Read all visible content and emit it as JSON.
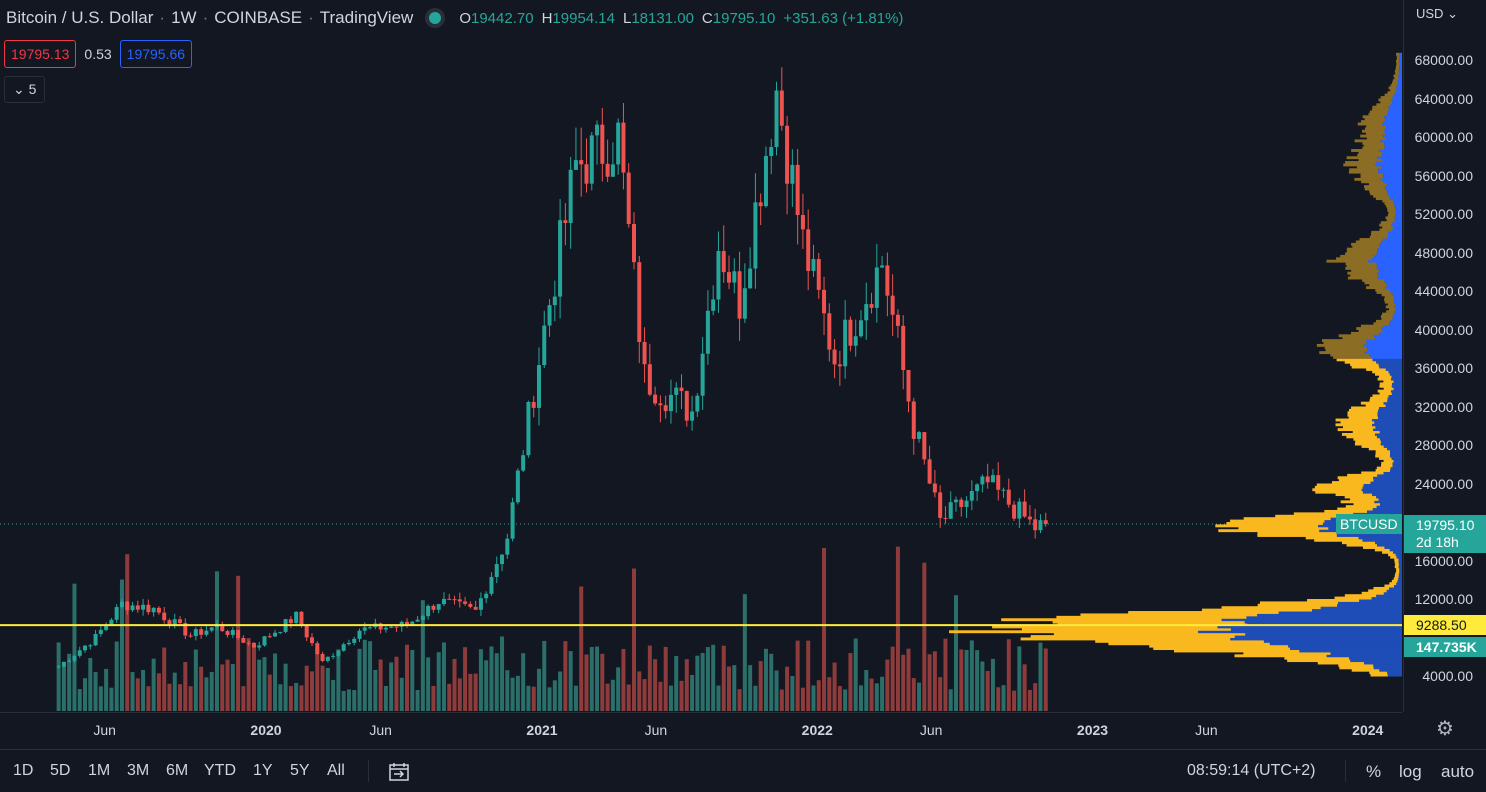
{
  "header": {
    "symbol_title": "Bitcoin / U.S. Dollar",
    "interval": "1W",
    "exchange": "COINBASE",
    "source": "TradingView",
    "open_label": "O",
    "open": "19442.70",
    "high_label": "H",
    "high": "19954.14",
    "low_label": "L",
    "low": "18131.00",
    "close_label": "C",
    "close": "19795.10",
    "change": "+351.63 (+1.81%)"
  },
  "quote": {
    "sell": "19795.13",
    "spread": "0.53",
    "buy": "19795.66"
  },
  "indicators_collapse": {
    "arrow": "⌄",
    "count": "5"
  },
  "price_axis": {
    "currency": "USD",
    "currency_arrow": "⌄",
    "labels": [
      "68000.00",
      "64000.00",
      "60000.00",
      "56000.00",
      "52000.00",
      "48000.00",
      "44000.00",
      "40000.00",
      "36000.00",
      "32000.00",
      "28000.00",
      "24000.00",
      "16000.00",
      "12000.00",
      "4000.00"
    ],
    "last_price_tag": "19795.10",
    "countdown": "2d 18h",
    "ref_line_tag": "9288.50",
    "volume_tag": "147.735K",
    "symbol_tag": "BTCUSD"
  },
  "time_axis": {
    "labels": [
      {
        "text": "Jun",
        "bold": false
      },
      {
        "text": "2020",
        "bold": true
      },
      {
        "text": "Jun",
        "bold": false
      },
      {
        "text": "2021",
        "bold": true
      },
      {
        "text": "Jun",
        "bold": false
      },
      {
        "text": "2022",
        "bold": true
      },
      {
        "text": "Jun",
        "bold": false
      },
      {
        "text": "2023",
        "bold": true
      },
      {
        "text": "Jun",
        "bold": false
      },
      {
        "text": "2024",
        "bold": true
      }
    ]
  },
  "bottom_bar": {
    "ranges": [
      "1D",
      "5D",
      "1M",
      "3M",
      "6M",
      "YTD",
      "1Y",
      "5Y",
      "All"
    ],
    "clock": "08:59:14 (UTC+2)",
    "options": [
      "%",
      "log",
      "auto"
    ]
  },
  "colors": {
    "up": "#26a69a",
    "down": "#ef5350",
    "background": "#131722",
    "ref_line": "#ffeb3b",
    "vp_up": "#f9b91e",
    "vp_down": "#1e4db7"
  },
  "chart_data": {
    "type": "candlestick",
    "symbol": "BTCUSD",
    "interval": "1W",
    "ylim": [
      2000,
      70000
    ],
    "last_price": 19795.1,
    "ref_line": 9288.5,
    "close_path": [
      {
        "date": "2019-04-01",
        "close": 5000
      },
      {
        "date": "2019-05-20",
        "close": 8000
      },
      {
        "date": "2019-06-24",
        "close": 11500
      },
      {
        "date": "2019-08-05",
        "close": 11000
      },
      {
        "date": "2019-09-23",
        "close": 8200
      },
      {
        "date": "2019-10-28",
        "close": 9200
      },
      {
        "date": "2019-12-16",
        "close": 7100
      },
      {
        "date": "2020-02-10",
        "close": 10200
      },
      {
        "date": "2020-03-16",
        "close": 5400
      },
      {
        "date": "2020-05-04",
        "close": 8800
      },
      {
        "date": "2020-07-06",
        "close": 9300
      },
      {
        "date": "2020-08-17",
        "close": 11800
      },
      {
        "date": "2020-10-05",
        "close": 10700
      },
      {
        "date": "2020-11-16",
        "close": 18500
      },
      {
        "date": "2021-01-04",
        "close": 40000
      },
      {
        "date": "2021-02-15",
        "close": 57000
      },
      {
        "date": "2021-04-12",
        "close": 60000
      },
      {
        "date": "2021-05-17",
        "close": 35000
      },
      {
        "date": "2021-07-19",
        "close": 31500
      },
      {
        "date": "2021-08-23",
        "close": 49000
      },
      {
        "date": "2021-09-20",
        "close": 43000
      },
      {
        "date": "2021-11-08",
        "close": 65000
      },
      {
        "date": "2021-12-13",
        "close": 49000
      },
      {
        "date": "2022-01-24",
        "close": 37000
      },
      {
        "date": "2022-03-28",
        "close": 47000
      },
      {
        "date": "2022-05-09",
        "close": 30000
      },
      {
        "date": "2022-06-13",
        "close": 20000
      },
      {
        "date": "2022-08-15",
        "close": 24000
      },
      {
        "date": "2022-10-17",
        "close": 19400
      },
      {
        "date": "2022-10-31",
        "close": 19795
      }
    ]
  }
}
